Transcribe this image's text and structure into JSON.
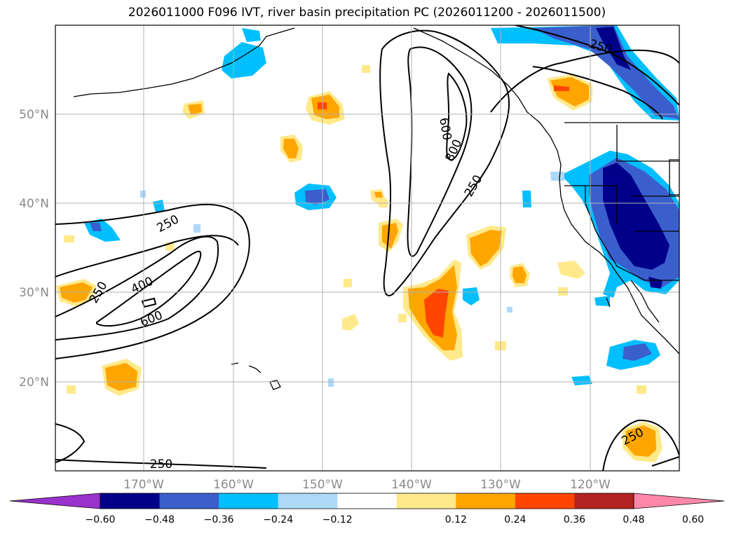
{
  "title": "2026011000 F096 IVT, river basin precipitation PC (2026011200 - 2026011500)",
  "map": {
    "lat_ticks": [
      {
        "value": 20,
        "label": "20°N"
      },
      {
        "value": 30,
        "label": "30°N"
      },
      {
        "value": 40,
        "label": "40°N"
      },
      {
        "value": 50,
        "label": "50°N"
      }
    ],
    "lon_ticks": [
      {
        "value": -170,
        "label": "170°W"
      },
      {
        "value": -160,
        "label": "160°W"
      },
      {
        "value": -150,
        "label": "150°W"
      },
      {
        "value": -140,
        "label": "140°W"
      },
      {
        "value": -130,
        "label": "130°W"
      },
      {
        "value": -120,
        "label": "120°W"
      }
    ],
    "contour_labels": [
      "250",
      "400",
      "600",
      "800",
      "250",
      "250",
      "600",
      "250",
      "250",
      "250"
    ]
  },
  "colorbar": {
    "ticks": [
      "−0.60",
      "−0.48",
      "−0.36",
      "−0.24",
      "−0.12",
      "0.12",
      "0.24",
      "0.36",
      "0.48",
      "0.60"
    ],
    "colors": [
      "#9932cc",
      "#00008b",
      "#3a5fcd",
      "#00bfff",
      "#add8f8",
      "#ffffff",
      "#ffe98a",
      "#ffa500",
      "#ff4500",
      "#b22222",
      "#ff88aa"
    ]
  }
}
